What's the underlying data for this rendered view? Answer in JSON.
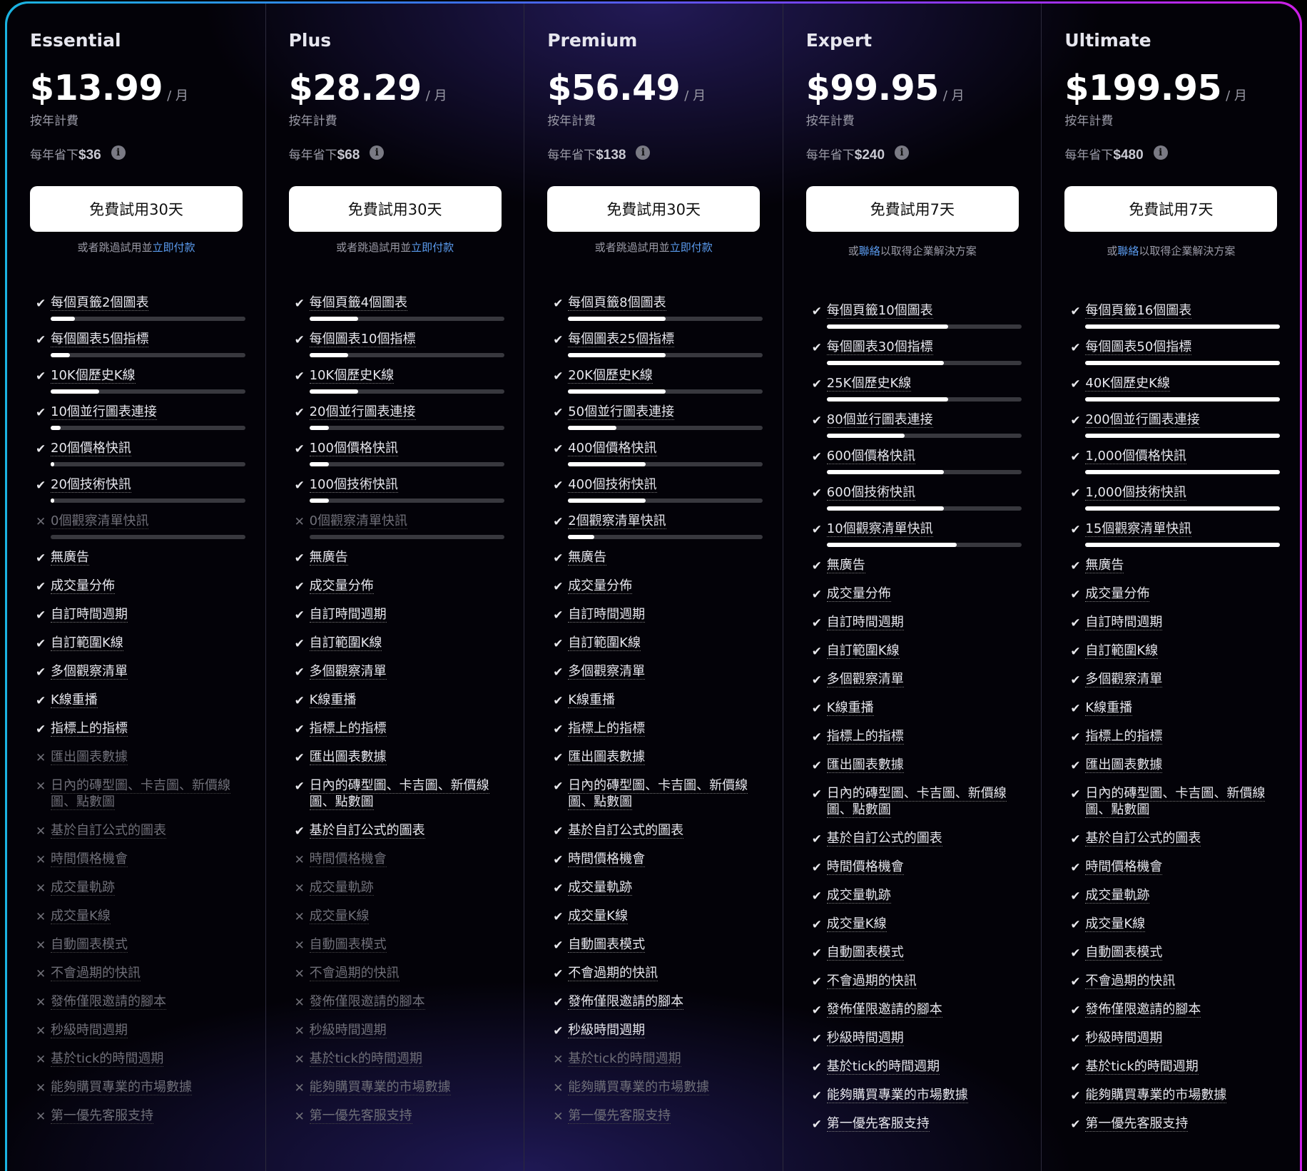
{
  "colors": {
    "accent_link": "#5b9cf0",
    "border_left": "#1ab4e0",
    "border_right": "#cc1fe6",
    "disabled": "#6f6f78"
  },
  "icons": {
    "check": "check-icon",
    "cross": "x-icon",
    "info": "info-icon"
  },
  "per_month": "/ 月",
  "billing": "按年計費",
  "savings_prefix": "每年省下",
  "limit_features": [
    "charts_per_tab",
    "indicators_per_chart",
    "historical_bars",
    "parallel_connections",
    "price_alerts",
    "technical_alerts",
    "watchlist_alerts"
  ],
  "bool_features": [
    "無廣告",
    "成交量分佈",
    "自訂時間週期",
    "自訂範圍K線",
    "多個觀察清單",
    "K線重播",
    "指標上的指標",
    "匯出圖表數據",
    "日內的磚型圖、卡吉圖、新價線圖、點數圖",
    "基於自訂公式的圖表",
    "時間價格機會",
    "成交量軌跡",
    "成交量K線",
    "自動圖表模式",
    "不會過期的快訊",
    "發佈僅限邀請的腳本",
    "秒級時間週期",
    "基於tick的時間週期",
    "能夠購買專業的市場數據",
    "第一優先客服支持"
  ],
  "plans": [
    {
      "name": "Essential",
      "price": "$13.99",
      "savings": "$36",
      "cta": "免費試用30天",
      "sub_pre": "或者跳過試用並",
      "sub_link": "立即付款",
      "sub_post": "",
      "limits": [
        {
          "label": "每個頁籤2個圖表",
          "value": 2,
          "max": 16
        },
        {
          "label": "每個圖表5個指標",
          "value": 5,
          "max": 50
        },
        {
          "label": "10K個歷史K線",
          "value": 10,
          "max": 40
        },
        {
          "label": "10個並行圖表連接",
          "value": 10,
          "max": 200
        },
        {
          "label": "20個價格快訊",
          "value": 20,
          "max": 1000
        },
        {
          "label": "20個技術快訊",
          "value": 20,
          "max": 1000
        },
        {
          "label": "0個觀察清單快訊",
          "value": 0,
          "max": 15,
          "included": false
        }
      ],
      "included_count": 7
    },
    {
      "name": "Plus",
      "price": "$28.29",
      "savings": "$68",
      "cta": "免費試用30天",
      "sub_pre": "或者跳過試用並",
      "sub_link": "立即付款",
      "sub_post": "",
      "limits": [
        {
          "label": "每個頁籤4個圖表",
          "value": 4,
          "max": 16
        },
        {
          "label": "每個圖表10個指標",
          "value": 10,
          "max": 50
        },
        {
          "label": "10K個歷史K線",
          "value": 10,
          "max": 40
        },
        {
          "label": "20個並行圖表連接",
          "value": 20,
          "max": 200
        },
        {
          "label": "100個價格快訊",
          "value": 100,
          "max": 1000
        },
        {
          "label": "100個技術快訊",
          "value": 100,
          "max": 1000
        },
        {
          "label": "0個觀察清單快訊",
          "value": 0,
          "max": 15,
          "included": false
        }
      ],
      "included_count": 10
    },
    {
      "name": "Premium",
      "price": "$56.49",
      "savings": "$138",
      "cta": "免費試用30天",
      "sub_pre": "或者跳過試用並",
      "sub_link": "立即付款",
      "sub_post": "",
      "limits": [
        {
          "label": "每個頁籤8個圖表",
          "value": 8,
          "max": 16
        },
        {
          "label": "每個圖表25個指標",
          "value": 25,
          "max": 50
        },
        {
          "label": "20K個歷史K線",
          "value": 20,
          "max": 40
        },
        {
          "label": "50個並行圖表連接",
          "value": 50,
          "max": 200
        },
        {
          "label": "400個價格快訊",
          "value": 400,
          "max": 1000
        },
        {
          "label": "400個技術快訊",
          "value": 400,
          "max": 1000
        },
        {
          "label": "2個觀察清單快訊",
          "value": 2,
          "max": 15
        }
      ],
      "included_count": 17
    },
    {
      "name": "Expert",
      "price": "$99.95",
      "savings": "$240",
      "cta": "免費試用7天",
      "sub_pre": "或",
      "sub_link": "聯絡",
      "sub_post": "以取得企業解決方案",
      "limits": [
        {
          "label": "每個頁籤10個圖表",
          "value": 10,
          "max": 16
        },
        {
          "label": "每個圖表30個指標",
          "value": 30,
          "max": 50
        },
        {
          "label": "25K個歷史K線",
          "value": 25,
          "max": 40
        },
        {
          "label": "80個並行圖表連接",
          "value": 80,
          "max": 200
        },
        {
          "label": "600個價格快訊",
          "value": 600,
          "max": 1000
        },
        {
          "label": "600個技術快訊",
          "value": 600,
          "max": 1000
        },
        {
          "label": "10個觀察清單快訊",
          "value": 10,
          "max": 15
        }
      ],
      "included_count": 20
    },
    {
      "name": "Ultimate",
      "price": "$199.95",
      "savings": "$480",
      "cta": "免費試用7天",
      "sub_pre": "或",
      "sub_link": "聯絡",
      "sub_post": "以取得企業解決方案",
      "limits": [
        {
          "label": "每個頁籤16個圖表",
          "value": 16,
          "max": 16
        },
        {
          "label": "每個圖表50個指標",
          "value": 50,
          "max": 50
        },
        {
          "label": "40K個歷史K線",
          "value": 40,
          "max": 40
        },
        {
          "label": "200個並行圖表連接",
          "value": 200,
          "max": 200
        },
        {
          "label": "1,000個價格快訊",
          "value": 1000,
          "max": 1000
        },
        {
          "label": "1,000個技術快訊",
          "value": 1000,
          "max": 1000
        },
        {
          "label": "15個觀察清單快訊",
          "value": 15,
          "max": 15
        }
      ],
      "included_count": 20
    }
  ]
}
